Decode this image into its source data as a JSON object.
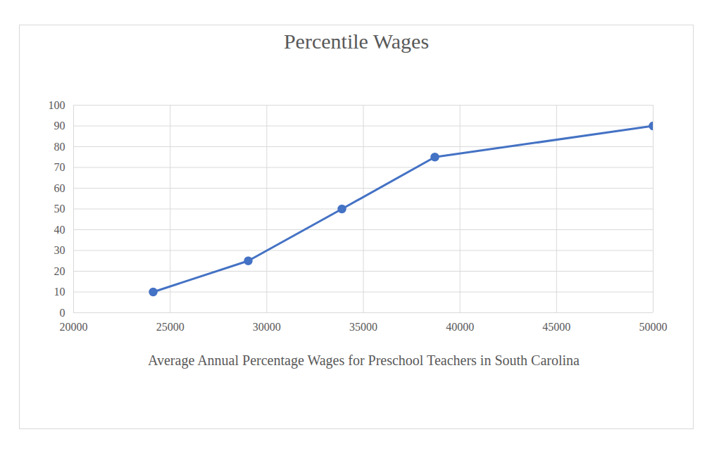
{
  "chart_data": {
    "type": "line",
    "title": "Percentile Wages",
    "xlabel": "Average Annual Percentage Wages for Preschool Teachers in South Carolina",
    "x": [
      24120,
      29040,
      33890,
      38700,
      50000
    ],
    "values": [
      10,
      25,
      50,
      75,
      90
    ],
    "color": "#4472c4",
    "marker": "circle",
    "xlim": [
      20000,
      50000
    ],
    "xticks": [
      20000,
      25000,
      30000,
      35000,
      40000,
      45000,
      50000
    ],
    "ylim": [
      0,
      100
    ],
    "yticks": [
      0,
      10,
      20,
      30,
      40,
      50,
      60,
      70,
      80,
      90,
      100
    ],
    "grid": true
  }
}
